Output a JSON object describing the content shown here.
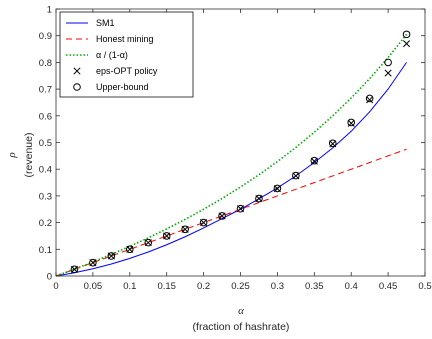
{
  "chart_data": {
    "type": "line",
    "title": "",
    "xlabel": "α",
    "xlabel_sub": "(fraction of hashrate)",
    "ylabel": "ρ",
    "ylabel_sub": "(revenue)",
    "xlim": [
      0,
      0.5
    ],
    "ylim": [
      0,
      1
    ],
    "xticks": [
      0,
      0.05,
      0.1,
      0.15,
      0.2,
      0.25,
      0.3,
      0.35,
      0.4,
      0.45,
      0.5
    ],
    "xtick_labels": [
      "0",
      "0.05",
      "0.1",
      "0.15",
      "0.2",
      "0.25",
      "0.3",
      "0.35",
      "0.4",
      "0.45",
      "0.5"
    ],
    "yticks": [
      0,
      0.1,
      0.2,
      0.3,
      0.4,
      0.5,
      0.6,
      0.7,
      0.8,
      0.9,
      1
    ],
    "ytick_labels": [
      "0",
      "0.1",
      "0.2",
      "0.3",
      "0.4",
      "0.5",
      "0.6",
      "0.7",
      "0.8",
      "0.9",
      "1"
    ],
    "grid": false,
    "legend_position": "top-left",
    "series": [
      {
        "name": "SM1",
        "kind": "line",
        "style": "solid",
        "color": "#0000ff",
        "x": [
          0.0,
          0.025,
          0.05,
          0.075,
          0.1,
          0.125,
          0.15,
          0.175,
          0.2,
          0.225,
          0.25,
          0.275,
          0.3,
          0.325,
          0.35,
          0.375,
          0.4,
          0.425,
          0.45,
          0.475
        ],
        "y": [
          0.0,
          0.012,
          0.027,
          0.045,
          0.066,
          0.09,
          0.117,
          0.147,
          0.18,
          0.215,
          0.25,
          0.289,
          0.33,
          0.375,
          0.425,
          0.48,
          0.542,
          0.615,
          0.7,
          0.8
        ]
      },
      {
        "name": "Honest mining",
        "kind": "line",
        "style": "dashed",
        "color": "#ff0000",
        "x": [
          0.0,
          0.475
        ],
        "y": [
          0.0,
          0.475
        ]
      },
      {
        "name": "α / (1-α)",
        "kind": "line",
        "style": "dotted",
        "color": "#00aa00",
        "x": [
          0.0,
          0.025,
          0.05,
          0.075,
          0.1,
          0.125,
          0.15,
          0.175,
          0.2,
          0.225,
          0.25,
          0.275,
          0.3,
          0.325,
          0.35,
          0.375,
          0.4,
          0.425,
          0.45,
          0.475
        ],
        "y": [
          0.0,
          0.0256,
          0.0526,
          0.0811,
          0.1111,
          0.1429,
          0.1765,
          0.2121,
          0.25,
          0.2903,
          0.3333,
          0.3793,
          0.4286,
          0.4815,
          0.5385,
          0.6,
          0.6667,
          0.7391,
          0.8182,
          0.9048
        ]
      },
      {
        "name": "eps-OPT policy",
        "kind": "scatter",
        "marker": "x",
        "color": "#000000",
        "x": [
          0.025,
          0.05,
          0.075,
          0.1,
          0.125,
          0.15,
          0.175,
          0.2,
          0.225,
          0.25,
          0.275,
          0.3,
          0.325,
          0.35,
          0.375,
          0.4,
          0.425,
          0.45,
          0.475
        ],
        "y": [
          0.025,
          0.05,
          0.075,
          0.1,
          0.125,
          0.15,
          0.175,
          0.2,
          0.225,
          0.252,
          0.29,
          0.327,
          0.375,
          0.43,
          0.495,
          0.572,
          0.66,
          0.76,
          0.87
        ]
      },
      {
        "name": "Upper-bound",
        "kind": "scatter",
        "marker": "o",
        "color": "#000000",
        "x": [
          0.025,
          0.05,
          0.075,
          0.1,
          0.125,
          0.15,
          0.175,
          0.2,
          0.225,
          0.25,
          0.275,
          0.3,
          0.325,
          0.35,
          0.375,
          0.4,
          0.425,
          0.45,
          0.475
        ],
        "y": [
          0.025,
          0.05,
          0.075,
          0.1,
          0.125,
          0.15,
          0.175,
          0.2,
          0.225,
          0.252,
          0.29,
          0.328,
          0.376,
          0.432,
          0.497,
          0.575,
          0.665,
          0.8,
          0.905
        ]
      }
    ]
  }
}
